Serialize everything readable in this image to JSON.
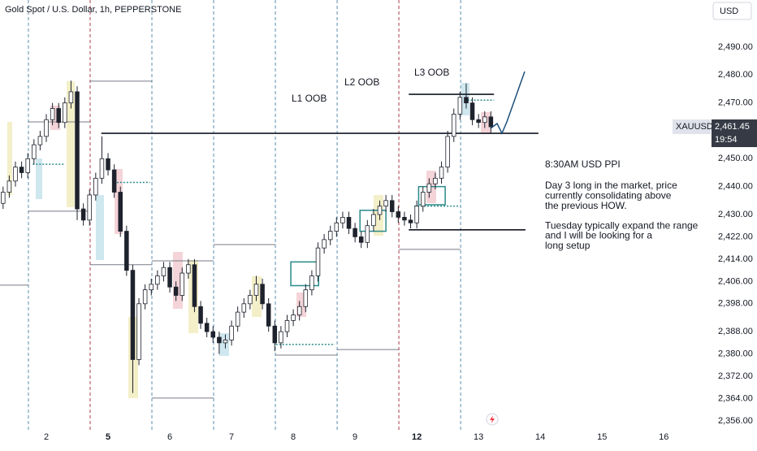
{
  "chart_data": {
    "type": "candlestick",
    "title": "Gold Spot / U.S. Dollar, 1h, PEPPERSTONE",
    "currency": "USD",
    "symbol": "XAUUSD",
    "last_price": {
      "value": 2461.45,
      "label": "2,461.45"
    },
    "countdown": "19:54",
    "up_color": "#ffffff",
    "down_color": "#1e222d",
    "xlim": [
      -0.75,
      10.76
    ],
    "ylim": [
      2352.5,
      2506.9
    ],
    "xticks": [
      {
        "value": 0,
        "label": "2"
      },
      {
        "value": 1,
        "label": "5"
      },
      {
        "value": 2,
        "label": "6"
      },
      {
        "value": 3,
        "label": "7"
      },
      {
        "value": 4,
        "label": "8"
      },
      {
        "value": 5,
        "label": "9"
      },
      {
        "value": 6,
        "label": "12"
      },
      {
        "value": 7,
        "label": "13"
      },
      {
        "value": 8,
        "label": "14"
      },
      {
        "value": 9,
        "label": "15"
      },
      {
        "value": 10,
        "label": "16"
      }
    ],
    "bold_xticks": [
      "5",
      "12"
    ],
    "yticks": [
      {
        "value": 2356,
        "label": "2,356.00"
      },
      {
        "value": 2364,
        "label": "2,364.00"
      },
      {
        "value": 2372,
        "label": "2,372.00"
      },
      {
        "value": 2380,
        "label": "2,380.00"
      },
      {
        "value": 2388,
        "label": "2,388.00"
      },
      {
        "value": 2398,
        "label": "2,398.00"
      },
      {
        "value": 2406,
        "label": "2,406.00"
      },
      {
        "value": 2414,
        "label": "2,414.00"
      },
      {
        "value": 2422,
        "label": "2,422.00"
      },
      {
        "value": 2430,
        "label": "2,430.00"
      },
      {
        "value": 2440,
        "label": "2,440.00"
      },
      {
        "value": 2450,
        "label": "2,450.00"
      },
      {
        "value": 2470,
        "label": "2,470.00"
      },
      {
        "value": 2480,
        "label": "2,480.00"
      },
      {
        "value": 2490,
        "label": "2,490.00"
      }
    ],
    "session_breaks": [
      -0.29,
      1.71,
      2.71,
      3.71,
      4.71,
      6.71
    ],
    "week_breaks": [
      0.71,
      5.71
    ],
    "x": [
      -0.7,
      -0.6,
      -0.5,
      -0.4,
      -0.3,
      -0.2,
      -0.1,
      0,
      0.1,
      0.2,
      0.3,
      0.4,
      0.5,
      0.6,
      0.7,
      0.8,
      0.9,
      1,
      1.1,
      1.2,
      1.3,
      1.4,
      1.5,
      1.6,
      1.7,
      1.8,
      1.9,
      2,
      2.1,
      2.2,
      2.3,
      2.4,
      2.5,
      2.6,
      2.7,
      2.8,
      2.9,
      3,
      3.1,
      3.2,
      3.3,
      3.4,
      3.5,
      3.6,
      3.7,
      3.8,
      3.9,
      4,
      4.1,
      4.2,
      4.3,
      4.4,
      4.5,
      4.6,
      4.7,
      4.8,
      4.9,
      5,
      5.1,
      5.2,
      5.3,
      5.4,
      5.5,
      5.6,
      5.7,
      5.8,
      5.9,
      6,
      6.1,
      6.2,
      6.3,
      6.4,
      6.5,
      6.6,
      6.7,
      6.8,
      6.9,
      7,
      7.1,
      7.2
    ],
    "open": [
      2434,
      2438,
      2442,
      2447,
      2445,
      2450,
      2455,
      2458,
      2464,
      2468,
      2463,
      2470,
      2474,
      2432,
      2428,
      2437,
      2443,
      2450,
      2446,
      2438,
      2424,
      2410,
      2378,
      2398,
      2403,
      2405,
      2408,
      2411,
      2404,
      2401,
      2409,
      2412,
      2397,
      2391,
      2388,
      2386,
      2384,
      2385,
      2390,
      2395,
      2398,
      2401,
      2405,
      2398,
      2390,
      2384,
      2388,
      2392,
      2394,
      2397,
      2403,
      2408,
      2418,
      2421,
      2424,
      2427,
      2429,
      2425,
      2422,
      2420,
      2426,
      2430,
      2433,
      2435,
      2431,
      2429,
      2428,
      2427,
      2433,
      2438,
      2441,
      2443,
      2447,
      2458,
      2466,
      2472,
      2470,
      2464,
      2463,
      2465
    ],
    "high": [
      2440,
      2444,
      2449,
      2449,
      2452,
      2457,
      2460,
      2466,
      2470,
      2470,
      2472,
      2478,
      2476,
      2434,
      2439,
      2445,
      2458,
      2452,
      2448,
      2440,
      2426,
      2412,
      2400,
      2405,
      2407,
      2410,
      2413,
      2413,
      2406,
      2411,
      2414,
      2414,
      2399,
      2393,
      2390,
      2388,
      2387,
      2392,
      2397,
      2400,
      2403,
      2408,
      2407,
      2400,
      2392,
      2390,
      2394,
      2396,
      2399,
      2405,
      2410,
      2420,
      2423,
      2426,
      2429,
      2431,
      2431,
      2427,
      2424,
      2428,
      2432,
      2435,
      2437,
      2437,
      2433,
      2431,
      2430,
      2435,
      2440,
      2443,
      2445,
      2449,
      2460,
      2468,
      2474,
      2477,
      2472,
      2466,
      2467,
      2467
    ],
    "low": [
      2432,
      2436,
      2440,
      2443,
      2443,
      2448,
      2453,
      2456,
      2462,
      2461,
      2461,
      2468,
      2428,
      2426,
      2426,
      2435,
      2441,
      2444,
      2436,
      2422,
      2408,
      2366,
      2376,
      2396,
      2401,
      2403,
      2406,
      2402,
      2399,
      2399,
      2407,
      2395,
      2389,
      2386,
      2384,
      2380,
      2382,
      2383,
      2388,
      2393,
      2396,
      2399,
      2396,
      2388,
      2381,
      2382,
      2386,
      2390,
      2392,
      2395,
      2401,
      2406,
      2416,
      2419,
      2422,
      2425,
      2423,
      2420,
      2418,
      2418,
      2424,
      2428,
      2431,
      2429,
      2427,
      2426,
      2425,
      2425,
      2431,
      2436,
      2439,
      2441,
      2445,
      2456,
      2464,
      2468,
      2462,
      2461,
      2461,
      2459
    ],
    "close": [
      2438,
      2442,
      2447,
      2445,
      2450,
      2455,
      2458,
      2464,
      2468,
      2463,
      2470,
      2474,
      2432,
      2428,
      2437,
      2443,
      2450,
      2446,
      2438,
      2424,
      2410,
      2378,
      2398,
      2403,
      2405,
      2408,
      2411,
      2404,
      2401,
      2409,
      2412,
      2397,
      2391,
      2388,
      2386,
      2384,
      2385,
      2390,
      2395,
      2398,
      2401,
      2405,
      2398,
      2390,
      2384,
      2388,
      2392,
      2394,
      2397,
      2403,
      2408,
      2418,
      2421,
      2424,
      2427,
      2429,
      2425,
      2422,
      2420,
      2426,
      2430,
      2433,
      2435,
      2431,
      2429,
      2428,
      2427,
      2433,
      2438,
      2441,
      2443,
      2447,
      2458,
      2466,
      2472,
      2470,
      2464,
      2463,
      2465,
      2461.45
    ],
    "key_levels": [
      {
        "price": 2459.1,
        "from": 0.89,
        "to": 7.97
      },
      {
        "price": 2473.1,
        "from": 5.87,
        "to": 7.25
      },
      {
        "price": 2424.5,
        "from": 5.87,
        "to": 7.76
      }
    ],
    "session_levels": [
      {
        "price": 2463.2,
        "from": -0.29,
        "to": 0.71
      },
      {
        "price": 2431.2,
        "from": -0.29,
        "to": 0.71
      },
      {
        "price": 2404.7,
        "from": -0.75,
        "to": -0.29
      },
      {
        "price": 2477.8,
        "from": 0.71,
        "to": 1.71
      },
      {
        "price": 2412,
        "from": 0.71,
        "to": 1.71
      },
      {
        "price": 2413.4,
        "from": 1.71,
        "to": 2.71
      },
      {
        "price": 2364.2,
        "from": 1.71,
        "to": 2.71
      },
      {
        "price": 2419.2,
        "from": 2.71,
        "to": 3.71
      },
      {
        "price": 2379.6,
        "from": 3.71,
        "to": 4.71
      },
      {
        "price": 2381.6,
        "from": 4.71,
        "to": 5.71
      },
      {
        "price": 2417.5,
        "from": 5.71,
        "to": 6.71
      }
    ],
    "dotted_levels": [
      {
        "price": 2448,
        "from": -0.22,
        "to": 0.3
      },
      {
        "price": 2441.5,
        "from": 1.09,
        "to": 1.68
      },
      {
        "price": 2383.4,
        "from": 3.72,
        "to": 4.67
      },
      {
        "price": 2433,
        "from": 5.96,
        "to": 6.7
      },
      {
        "price": 2471,
        "from": 6.82,
        "to": 7.25
      }
    ],
    "boxes": [
      {
        "top": 2413,
        "bottom": 2404.5,
        "from": 3.96,
        "to": 4.41
      },
      {
        "top": 2431.5,
        "bottom": 2424,
        "from": 5.08,
        "to": 5.5
      },
      {
        "top": 2440,
        "bottom": 2433.5,
        "from": 6.03,
        "to": 6.46
      }
    ],
    "annotations": [
      "L1 OOB",
      "L2 OOB",
      "L3 OOB"
    ],
    "note_title": "8:30AM USD PPI",
    "note_lines": [
      "Day 3 long in the market, price",
      "currently consolidating above",
      "the previous HOW.",
      "",
      "Tuesday typically expand the range",
      "and I will be looking for a",
      "long setup"
    ]
  }
}
